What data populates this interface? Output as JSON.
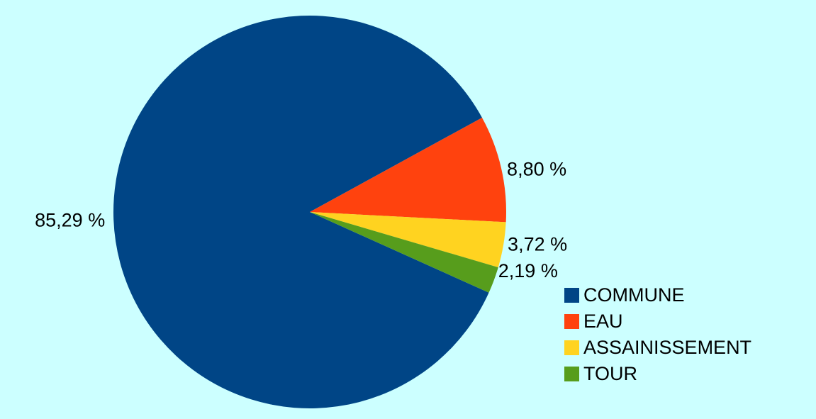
{
  "chart_data": {
    "type": "pie",
    "slices": [
      {
        "name": "COMMUNE",
        "value": 85.29,
        "label": "85,29 %",
        "color": "#004586"
      },
      {
        "name": "EAU",
        "value": 8.8,
        "label": "8,80 %",
        "color": "#ff420e"
      },
      {
        "name": "ASSAINISSEMENT",
        "value": 3.72,
        "label": "3,72 %",
        "color": "#ffd320"
      },
      {
        "name": "TOUR",
        "value": 2.19,
        "label": "2,19 %",
        "color": "#579d1c"
      }
    ],
    "legend_position": "bottom-right",
    "background": "#ccffff"
  }
}
